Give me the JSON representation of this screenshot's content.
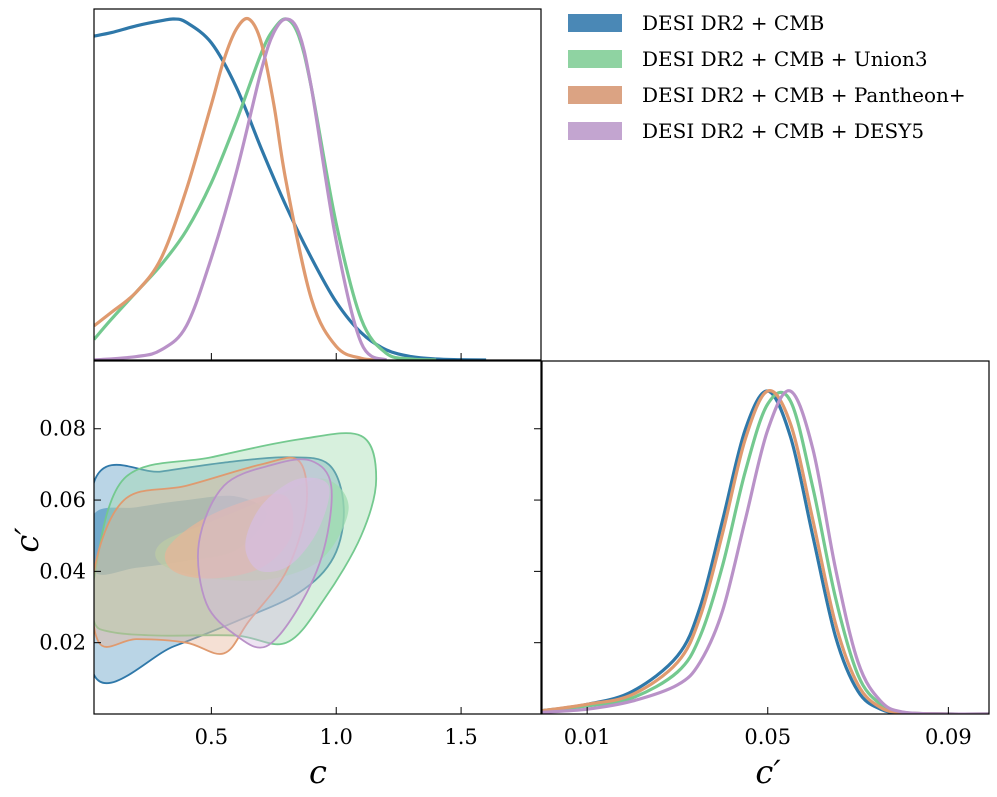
{
  "chart_data": {
    "type": "triangle-corner-plot",
    "parameters": [
      "c",
      "c′"
    ],
    "axis_labels": {
      "c": "c",
      "c_prime": "c′"
    },
    "ranges": {
      "c": [
        0.03,
        1.82
      ],
      "c_prime": [
        0.0,
        0.099
      ]
    },
    "ticks": {
      "c": [
        {
          "value": 0.5,
          "label": "0.5"
        },
        {
          "value": 1.0,
          "label": "1.0"
        },
        {
          "value": 1.5,
          "label": "1.5"
        }
      ],
      "c_prime": [
        {
          "value": 0.02,
          "label": "0.02"
        },
        {
          "value": 0.04,
          "label": "0.04"
        },
        {
          "value": 0.06,
          "label": "0.06"
        },
        {
          "value": 0.08,
          "label": "0.08"
        }
      ],
      "c_prime_bottom": [
        {
          "value": 0.01,
          "label": "0.01"
        },
        {
          "value": 0.05,
          "label": "0.05"
        },
        {
          "value": 0.09,
          "label": "0.09"
        }
      ]
    },
    "legend_position": "top-right",
    "series": [
      {
        "name": "DESI DR2 + CMB",
        "color": "#2f78a9",
        "fill": "#5a9bc4",
        "c_posterior": {
          "x": [
            0.03,
            0.1,
            0.2,
            0.3,
            0.35,
            0.4,
            0.5,
            0.6,
            0.7,
            0.8,
            0.9,
            1.0,
            1.1,
            1.2,
            1.3,
            1.4,
            1.5,
            1.6
          ],
          "y": [
            0.95,
            0.96,
            0.98,
            0.995,
            1.0,
            0.99,
            0.93,
            0.8,
            0.62,
            0.45,
            0.3,
            0.17,
            0.08,
            0.03,
            0.01,
            0.003,
            0.001,
            0.0
          ]
        },
        "c_prime_posterior": {
          "x": [
            0.0,
            0.01,
            0.02,
            0.03,
            0.035,
            0.04,
            0.045,
            0.05,
            0.055,
            0.06,
            0.065,
            0.07,
            0.075,
            0.08,
            0.09,
            0.099
          ],
          "y": [
            0.01,
            0.03,
            0.07,
            0.18,
            0.33,
            0.6,
            0.88,
            1.0,
            0.86,
            0.55,
            0.24,
            0.07,
            0.015,
            0.003,
            0.0,
            0.0
          ]
        },
        "outer_contour": [
          [
            0.03,
            0.065
          ],
          [
            0.3,
            0.068
          ],
          [
            0.55,
            0.0705
          ],
          [
            0.8,
            0.072
          ],
          [
            0.97,
            0.07
          ],
          [
            1.03,
            0.058
          ],
          [
            0.99,
            0.044
          ],
          [
            0.85,
            0.034
          ],
          [
            0.6,
            0.026
          ],
          [
            0.35,
            0.019
          ],
          [
            0.03,
            0.011
          ]
        ],
        "inner_contour": [
          [
            0.03,
            0.056
          ],
          [
            0.2,
            0.058
          ],
          [
            0.4,
            0.06
          ],
          [
            0.6,
            0.061
          ],
          [
            0.72,
            0.056
          ],
          [
            0.6,
            0.046
          ],
          [
            0.4,
            0.043
          ],
          [
            0.2,
            0.041
          ],
          [
            0.03,
            0.04
          ]
        ]
      },
      {
        "name": "DESI DR2 + CMB + Union3",
        "color": "#74c98f",
        "fill": "#9fdcaf",
        "c_posterior": {
          "x": [
            0.03,
            0.1,
            0.2,
            0.3,
            0.4,
            0.5,
            0.6,
            0.7,
            0.75,
            0.8,
            0.85,
            0.9,
            1.0,
            1.1,
            1.2,
            1.3,
            1.4
          ],
          "y": [
            0.06,
            0.12,
            0.2,
            0.28,
            0.38,
            0.52,
            0.7,
            0.9,
            0.97,
            1.0,
            0.95,
            0.8,
            0.4,
            0.12,
            0.02,
            0.003,
            0.0
          ]
        },
        "c_prime_posterior": {
          "x": [
            0.0,
            0.01,
            0.02,
            0.03,
            0.035,
            0.04,
            0.045,
            0.05,
            0.055,
            0.06,
            0.065,
            0.07,
            0.075,
            0.08,
            0.09,
            0.099
          ],
          "y": [
            0.01,
            0.025,
            0.05,
            0.13,
            0.24,
            0.46,
            0.75,
            0.96,
            0.97,
            0.7,
            0.36,
            0.12,
            0.03,
            0.005,
            0.0,
            0.0
          ]
        },
        "outer_contour": [
          [
            0.03,
            0.038
          ],
          [
            0.15,
            0.066
          ],
          [
            0.5,
            0.072
          ],
          [
            0.85,
            0.077
          ],
          [
            1.1,
            0.078
          ],
          [
            1.16,
            0.066
          ],
          [
            1.1,
            0.05
          ],
          [
            0.95,
            0.032
          ],
          [
            0.8,
            0.02
          ],
          [
            0.6,
            0.022
          ],
          [
            0.3,
            0.022
          ],
          [
            0.1,
            0.023
          ],
          [
            0.03,
            0.026
          ]
        ],
        "inner_contour": [
          [
            0.3,
            0.048
          ],
          [
            0.5,
            0.054
          ],
          [
            0.75,
            0.061
          ],
          [
            0.95,
            0.066
          ],
          [
            1.05,
            0.058
          ],
          [
            0.95,
            0.044
          ],
          [
            0.75,
            0.038
          ],
          [
            0.5,
            0.038
          ],
          [
            0.3,
            0.042
          ]
        ]
      },
      {
        "name": "DESI DR2 + CMB + Pantheon+",
        "color": "#df9a6f",
        "fill": "#e6b598",
        "c_posterior": {
          "x": [
            0.03,
            0.1,
            0.2,
            0.3,
            0.4,
            0.5,
            0.55,
            0.6,
            0.65,
            0.7,
            0.75,
            0.8,
            0.9,
            1.0,
            1.1,
            1.2
          ],
          "y": [
            0.1,
            0.14,
            0.2,
            0.3,
            0.5,
            0.75,
            0.88,
            0.97,
            1.0,
            0.93,
            0.75,
            0.52,
            0.18,
            0.04,
            0.005,
            0.0
          ]
        },
        "c_prime_posterior": {
          "x": [
            0.0,
            0.01,
            0.02,
            0.03,
            0.035,
            0.04,
            0.045,
            0.05,
            0.055,
            0.06,
            0.065,
            0.07,
            0.075,
            0.08,
            0.09,
            0.099
          ],
          "y": [
            0.01,
            0.03,
            0.06,
            0.16,
            0.3,
            0.56,
            0.85,
            1.0,
            0.9,
            0.6,
            0.28,
            0.09,
            0.02,
            0.004,
            0.0,
            0.0
          ]
        },
        "outer_contour": [
          [
            0.03,
            0.04
          ],
          [
            0.15,
            0.06
          ],
          [
            0.4,
            0.064
          ],
          [
            0.7,
            0.07
          ],
          [
            0.85,
            0.071
          ],
          [
            0.88,
            0.058
          ],
          [
            0.8,
            0.04
          ],
          [
            0.65,
            0.026
          ],
          [
            0.55,
            0.017
          ],
          [
            0.4,
            0.02
          ],
          [
            0.2,
            0.021
          ],
          [
            0.05,
            0.02
          ]
        ],
        "inner_contour": [
          [
            0.32,
            0.046
          ],
          [
            0.45,
            0.054
          ],
          [
            0.65,
            0.06
          ],
          [
            0.8,
            0.061
          ],
          [
            0.82,
            0.05
          ],
          [
            0.7,
            0.041
          ],
          [
            0.5,
            0.038
          ],
          [
            0.35,
            0.04
          ]
        ]
      },
      {
        "name": "DESI DR2 + CMB + DESY5",
        "color": "#b992c8",
        "fill": "#d5bde0",
        "c_posterior": {
          "x": [
            0.03,
            0.2,
            0.3,
            0.4,
            0.5,
            0.6,
            0.7,
            0.75,
            0.8,
            0.85,
            0.9,
            1.0,
            1.1,
            1.2
          ],
          "y": [
            0.0,
            0.01,
            0.03,
            0.1,
            0.3,
            0.55,
            0.85,
            0.96,
            1.0,
            0.96,
            0.8,
            0.35,
            0.05,
            0.0
          ]
        },
        "c_prime_posterior": {
          "x": [
            0.0,
            0.01,
            0.02,
            0.03,
            0.035,
            0.04,
            0.045,
            0.05,
            0.055,
            0.06,
            0.065,
            0.07,
            0.075,
            0.08,
            0.09,
            0.099
          ],
          "y": [
            0.005,
            0.015,
            0.04,
            0.09,
            0.16,
            0.32,
            0.6,
            0.88,
            1.0,
            0.82,
            0.45,
            0.16,
            0.04,
            0.006,
            0.0,
            0.0
          ]
        },
        "outer_contour": [
          [
            0.45,
            0.048
          ],
          [
            0.55,
            0.064
          ],
          [
            0.75,
            0.07
          ],
          [
            0.9,
            0.071
          ],
          [
            0.98,
            0.064
          ],
          [
            0.95,
            0.046
          ],
          [
            0.85,
            0.03
          ],
          [
            0.72,
            0.019
          ],
          [
            0.6,
            0.022
          ],
          [
            0.48,
            0.031
          ]
        ],
        "inner_contour": [
          [
            0.65,
            0.052
          ],
          [
            0.72,
            0.06
          ],
          [
            0.85,
            0.066
          ],
          [
            0.97,
            0.064
          ],
          [
            0.93,
            0.052
          ],
          [
            0.82,
            0.042
          ],
          [
            0.7,
            0.04
          ],
          [
            0.64,
            0.045
          ]
        ]
      }
    ]
  }
}
